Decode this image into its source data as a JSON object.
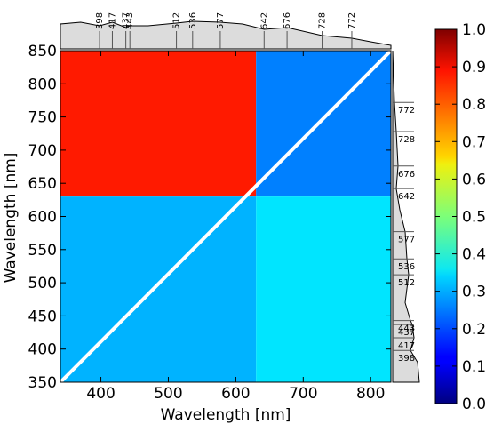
{
  "chart_data": {
    "type": "heatmap",
    "title": "",
    "xlabel": "Wavelength [nm]",
    "ylabel": "Wavelength [nm]",
    "xlim": [
      340,
      830
    ],
    "ylim": [
      350,
      850
    ],
    "x_ticks": [
      400,
      500,
      600,
      700,
      800
    ],
    "y_ticks": [
      350,
      400,
      450,
      500,
      550,
      600,
      650,
      700,
      750,
      800,
      850
    ],
    "x_tick_labels": [
      "400",
      "500",
      "600",
      "700",
      "800"
    ],
    "y_tick_labels": [
      "350",
      "400",
      "450",
      "500",
      "550",
      "600",
      "650",
      "700",
      "750",
      "800",
      "850"
    ],
    "marked_wavelengths": [
      398,
      417,
      437,
      443,
      512,
      536,
      577,
      642,
      676,
      728,
      772
    ],
    "marked_wavelength_labels": [
      "398",
      "417",
      "437",
      "443",
      "512",
      "536",
      "577",
      "642",
      "676",
      "728",
      "772"
    ],
    "diagonal_line": true,
    "colorbar": {
      "min": 0.0,
      "max": 1.0,
      "colormap": "jet",
      "ticks": [
        0.0,
        0.1,
        0.2,
        0.3,
        0.4,
        0.5,
        0.6,
        0.7,
        0.8,
        0.9,
        1.0
      ],
      "tick_labels": [
        "0.0",
        "0.1",
        "0.2",
        "0.3",
        "0.4",
        "0.5",
        "0.6",
        "0.7",
        "0.8",
        "0.9",
        "1.0"
      ]
    },
    "blocks": [
      {
        "x": [
          340,
          630
        ],
        "y": [
          630,
          850
        ],
        "value": 0.85
      },
      {
        "x": [
          630,
          830
        ],
        "y": [
          630,
          850
        ],
        "value": 0.25
      },
      {
        "x": [
          340,
          630
        ],
        "y": [
          350,
          630
        ],
        "value": 0.3
      },
      {
        "x": [
          630,
          830
        ],
        "y": [
          350,
          630
        ],
        "value": 0.35
      }
    ]
  }
}
